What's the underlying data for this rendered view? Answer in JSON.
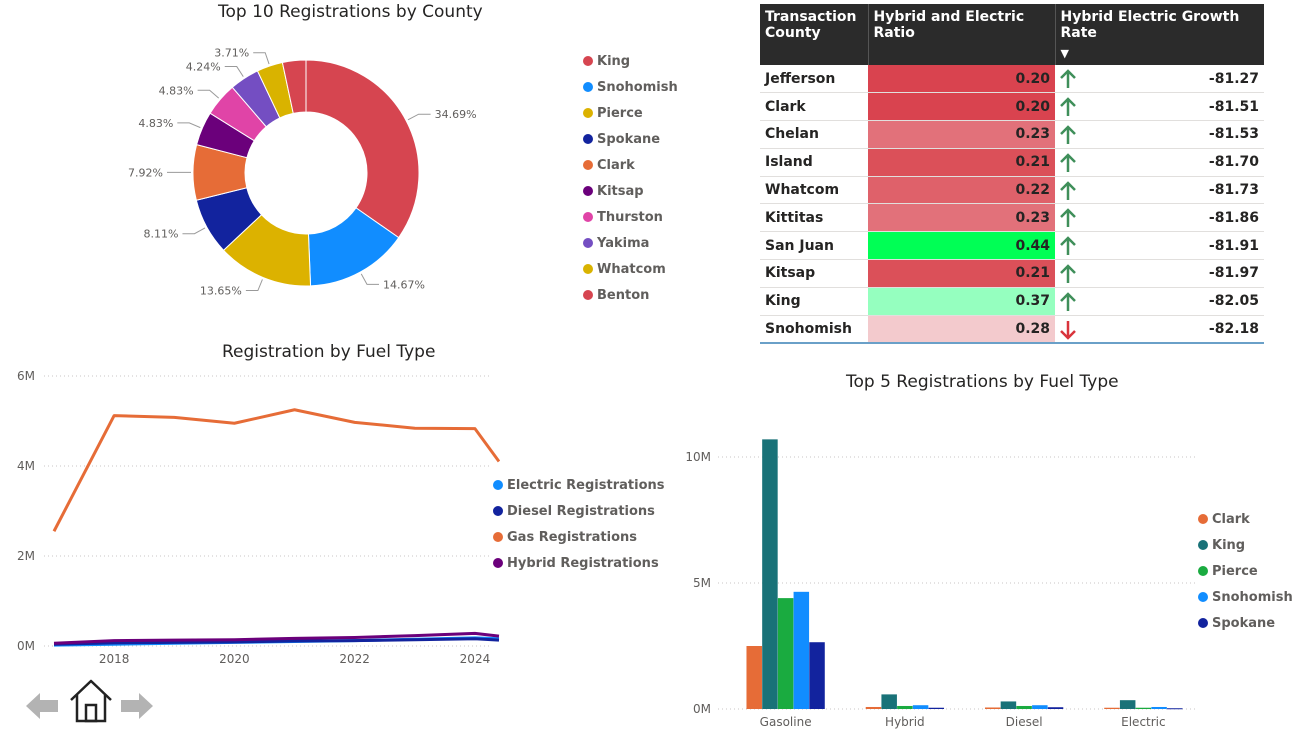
{
  "donut": {
    "title": "Top 10 Registrations by County",
    "legend": [
      {
        "name": "King",
        "color": "#d64550"
      },
      {
        "name": "Snohomish",
        "color": "#118dff"
      },
      {
        "name": "Pierce",
        "color": "#dcb200"
      },
      {
        "name": "Spokane",
        "color": "#12239e"
      },
      {
        "name": "Clark",
        "color": "#e66c37"
      },
      {
        "name": "Kitsap",
        "color": "#6b007b"
      },
      {
        "name": "Thurston",
        "color": "#e044a7"
      },
      {
        "name": "Yakima",
        "color": "#744ec2"
      },
      {
        "name": "Whatcom",
        "color": "#d9b300"
      },
      {
        "name": "Benton",
        "color": "#d64550"
      }
    ]
  },
  "fuel_line": {
    "title": "Registration by Fuel Type",
    "legend": [
      {
        "name": "Electric Registrations",
        "color": "#118dff"
      },
      {
        "name": "Diesel Registrations",
        "color": "#12239e"
      },
      {
        "name": "Gas Registrations",
        "color": "#e66c37"
      },
      {
        "name": "Hybrid Registrations",
        "color": "#6b007b"
      }
    ]
  },
  "bar_chart": {
    "title": "Top 5 Registrations by Fuel Type",
    "legend": [
      {
        "name": "Clark",
        "color": "#e66c37"
      },
      {
        "name": "King",
        "color": "#197278"
      },
      {
        "name": "Pierce",
        "color": "#1aab40"
      },
      {
        "name": "Snohomish",
        "color": "#118dff"
      },
      {
        "name": "Spokane",
        "color": "#12239e"
      }
    ]
  },
  "table": {
    "headers": [
      "Transaction County",
      "Hybrid and Electric Ratio",
      "Hybrid Electric Growth Rate"
    ],
    "sort_indicator": "▼",
    "rows": [
      {
        "county": "Jefferson",
        "ratio": "0.20",
        "ratio_color": "#d9434f",
        "trend": "up",
        "growth": "-81.27"
      },
      {
        "county": "Clark",
        "ratio": "0.20",
        "ratio_color": "#d9434f",
        "trend": "up",
        "growth": "-81.51"
      },
      {
        "county": "Chelan",
        "ratio": "0.23",
        "ratio_color": "#e2717a",
        "trend": "up",
        "growth": "-81.53"
      },
      {
        "county": "Island",
        "ratio": "0.21",
        "ratio_color": "#db5059",
        "trend": "up",
        "growth": "-81.70"
      },
      {
        "county": "Whatcom",
        "ratio": "0.22",
        "ratio_color": "#df616a",
        "trend": "up",
        "growth": "-81.73"
      },
      {
        "county": "Kittitas",
        "ratio": "0.23",
        "ratio_color": "#e2717a",
        "trend": "up",
        "growth": "-81.86"
      },
      {
        "county": "San Juan",
        "ratio": "0.44",
        "ratio_color": "#00ff55",
        "trend": "up",
        "growth": "-81.91"
      },
      {
        "county": "Kitsap",
        "ratio": "0.21",
        "ratio_color": "#db5059",
        "trend": "up",
        "growth": "-81.97"
      },
      {
        "county": "King",
        "ratio": "0.37",
        "ratio_color": "#95ffbf",
        "trend": "up",
        "growth": "-82.05"
      },
      {
        "county": "Snohomish",
        "ratio": "0.28",
        "ratio_color": "#f3cacd",
        "trend": "down",
        "growth": "-82.18"
      }
    ]
  },
  "nav": {
    "back_icon": "arrow-left-icon",
    "home_icon": "home-icon",
    "forward_icon": "arrow-right-icon"
  },
  "chart_data": [
    {
      "type": "pie",
      "title": "Top 10 Registrations by County",
      "categories": [
        "King",
        "Snohomish",
        "Pierce",
        "Spokane",
        "Clark",
        "Kitsap",
        "Thurston",
        "Yakima",
        "Whatcom",
        "Benton"
      ],
      "values": [
        34.69,
        14.67,
        13.65,
        8.11,
        7.92,
        4.83,
        4.83,
        4.24,
        3.71,
        3.35
      ],
      "data_labels": [
        "34.69%",
        "14.67%",
        "13.65%",
        "8.11%",
        "7.92%",
        "4.83%",
        "4.83%",
        "4.24%",
        "3.71%",
        ""
      ],
      "colors": [
        "#d64550",
        "#118dff",
        "#dcb200",
        "#12239e",
        "#e66c37",
        "#6b007b",
        "#e044a7",
        "#744ec2",
        "#d9b300",
        "#d64550"
      ],
      "legend": "right"
    },
    {
      "type": "line",
      "title": "Registration by Fuel Type",
      "x": [
        2017,
        2018,
        2019,
        2020,
        2021,
        2022,
        2023,
        2024,
        2024.4
      ],
      "x_ticks": [
        "2018",
        "2020",
        "2022",
        "2024"
      ],
      "x_tick_values": [
        2018,
        2020,
        2022,
        2024
      ],
      "y_ticks": [
        "0M",
        "2M",
        "4M",
        "6M"
      ],
      "y_tick_values": [
        0,
        2000000,
        4000000,
        6000000
      ],
      "ylim": [
        0,
        6000000
      ],
      "series": [
        {
          "name": "Gas Registrations",
          "color": "#e66c37",
          "values": [
            2550000,
            5120000,
            5080000,
            4950000,
            5250000,
            4970000,
            4840000,
            4830000,
            4100000
          ]
        },
        {
          "name": "Electric Registrations",
          "color": "#118dff",
          "values": [
            20000,
            40000,
            60000,
            80000,
            100000,
            120000,
            150000,
            180000,
            160000
          ]
        },
        {
          "name": "Diesel Registrations",
          "color": "#12239e",
          "values": [
            40000,
            70000,
            80000,
            90000,
            110000,
            120000,
            140000,
            160000,
            130000
          ]
        },
        {
          "name": "Hybrid Registrations",
          "color": "#6b007b",
          "values": [
            60000,
            120000,
            130000,
            140000,
            170000,
            190000,
            230000,
            280000,
            220000
          ]
        }
      ],
      "grid": true,
      "legend": "right"
    },
    {
      "type": "bar",
      "title": "Top 5 Registrations by Fuel Type",
      "categories": [
        "Gasoline",
        "Hybrid",
        "Diesel",
        "Electric"
      ],
      "y_ticks": [
        "0M",
        "5M",
        "10M"
      ],
      "y_tick_values": [
        0,
        5000000,
        10000000
      ],
      "ylim": [
        0,
        10000000
      ],
      "series": [
        {
          "name": "Clark",
          "color": "#e66c37",
          "values": [
            2500000,
            80000,
            60000,
            50000
          ]
        },
        {
          "name": "King",
          "color": "#197278",
          "values": [
            10700000,
            580000,
            300000,
            350000
          ]
        },
        {
          "name": "Pierce",
          "color": "#1aab40",
          "values": [
            4400000,
            120000,
            120000,
            50000
          ]
        },
        {
          "name": "Snohomish",
          "color": "#118dff",
          "values": [
            4650000,
            150000,
            150000,
            80000
          ]
        },
        {
          "name": "Spokane",
          "color": "#12239e",
          "values": [
            2650000,
            50000,
            70000,
            30000
          ]
        }
      ],
      "grid": true,
      "legend": "right"
    }
  ]
}
